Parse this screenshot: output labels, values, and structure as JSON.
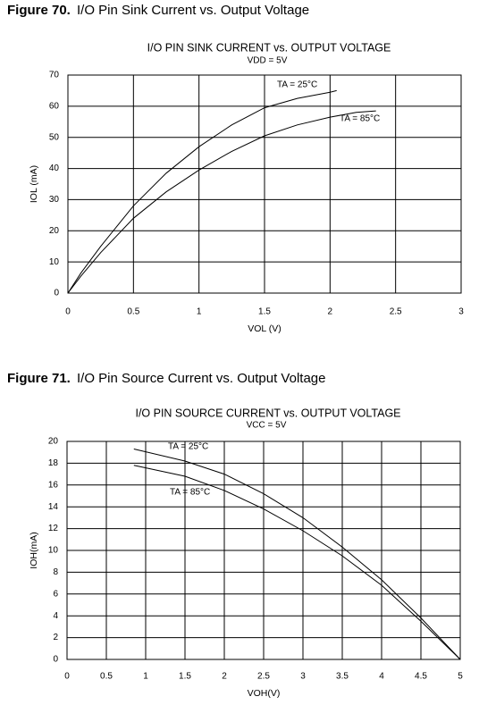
{
  "chart_data": [
    {
      "type": "line",
      "label": "Figure 70.",
      "caption": "I/O Pin Sink Current vs. Output Voltage",
      "title": "I/O PIN SINK CURRENT vs. OUTPUT VOLTAGE",
      "subtitle": "VDD = 5V",
      "x_label": "VOL (V)",
      "y_label": "IOL (mA)",
      "xlim": [
        0,
        3
      ],
      "xticks": [
        0,
        0.5,
        1,
        1.5,
        2,
        2.5,
        3
      ],
      "ylim": [
        0,
        70
      ],
      "yticks": [
        0,
        10,
        20,
        30,
        40,
        50,
        60,
        70
      ],
      "grid": true,
      "series": [
        {
          "name": "TA = 25°C",
          "color": "#000000",
          "x": [
            0,
            0.1,
            0.25,
            0.5,
            0.75,
            1,
            1.25,
            1.5,
            1.75,
            2,
            2.05
          ],
          "values": [
            0,
            6.5,
            15,
            28,
            38.5,
            47,
            54,
            59.5,
            62.5,
            64.5,
            65
          ]
        },
        {
          "name": "TA = 85°C",
          "color": "#000000",
          "x": [
            0,
            0.1,
            0.25,
            0.5,
            0.75,
            1,
            1.25,
            1.5,
            1.75,
            2,
            2.2,
            2.35
          ],
          "values": [
            0,
            5.5,
            13,
            24,
            32.5,
            39.5,
            45.5,
            50.5,
            54,
            56.5,
            58,
            58.5
          ]
        }
      ]
    },
    {
      "type": "line",
      "label": "Figure 71.",
      "caption": "I/O Pin Source Current vs. Output Voltage",
      "title": "I/O PIN SOURCE CURRENT vs. OUTPUT VOLTAGE",
      "subtitle": "VCC = 5V",
      "x_label": "VOH(V)",
      "y_label": "IOH(mA)",
      "xlim": [
        0,
        5
      ],
      "xticks": [
        0,
        0.5,
        1,
        1.5,
        2,
        2.5,
        3,
        3.5,
        4,
        4.5,
        5
      ],
      "ylim": [
        0,
        20
      ],
      "yticks": [
        0,
        2,
        4,
        6,
        8,
        10,
        12,
        14,
        16,
        18,
        20
      ],
      "grid": true,
      "series": [
        {
          "name": "TA = 25°C",
          "color": "#000000",
          "x": [
            0.85,
            1.5,
            2,
            2.5,
            3,
            3.5,
            4,
            4.5,
            5
          ],
          "values": [
            19.3,
            18.2,
            17,
            15.2,
            13,
            10.3,
            7.3,
            3.8,
            0
          ]
        },
        {
          "name": "TA = 85°C",
          "color": "#000000",
          "x": [
            0.85,
            1.5,
            2,
            2.5,
            3,
            3.5,
            4,
            4.5,
            5
          ],
          "values": [
            17.8,
            16.8,
            15.5,
            13.8,
            11.8,
            9.5,
            6.8,
            3.5,
            0
          ]
        }
      ]
    }
  ]
}
